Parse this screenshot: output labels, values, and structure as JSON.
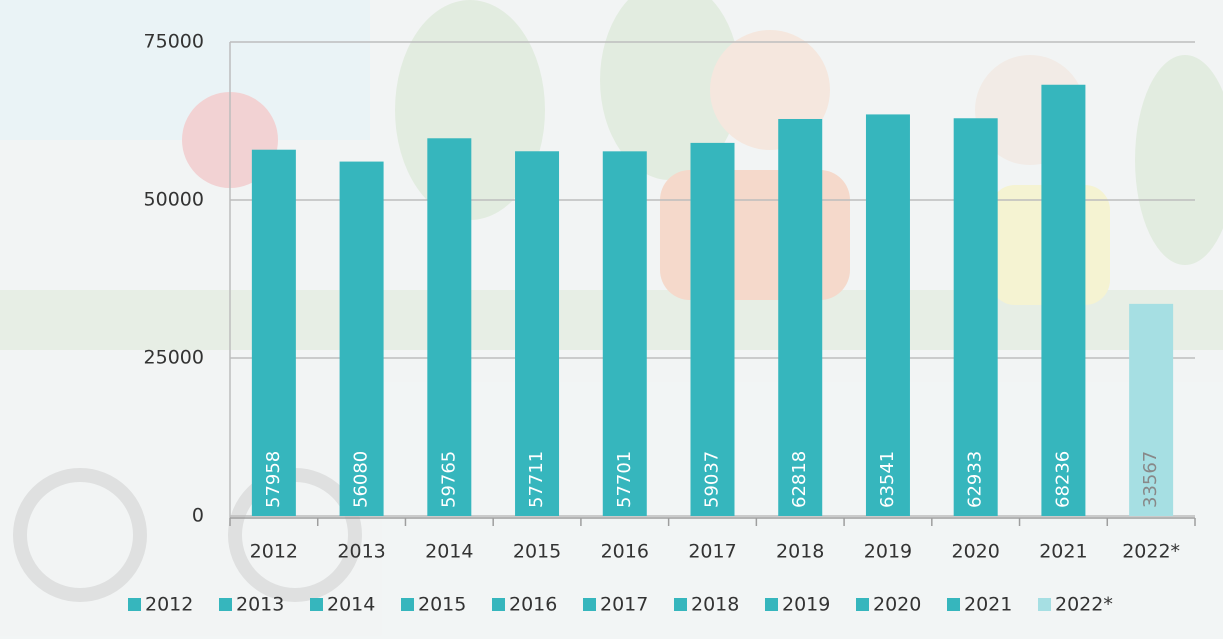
{
  "chart_data": {
    "type": "bar",
    "categories": [
      "2012",
      "2013",
      "2014",
      "2015",
      "2016",
      "2017",
      "2018",
      "2019",
      "2020",
      "2021",
      "2022*"
    ],
    "values": [
      57958,
      56080,
      59765,
      57711,
      57701,
      59037,
      62818,
      63541,
      62933,
      68236,
      33567
    ],
    "colors": [
      "#36b6bd",
      "#36b6bd",
      "#36b6bd",
      "#36b6bd",
      "#36b6bd",
      "#36b6bd",
      "#36b6bd",
      "#36b6bd",
      "#36b6bd",
      "#36b6bd",
      "#a6dfe3"
    ],
    "ylim": [
      0,
      75000
    ],
    "yticks": [
      0,
      25000,
      50000,
      75000
    ],
    "grid": true,
    "legend": "bottom"
  }
}
